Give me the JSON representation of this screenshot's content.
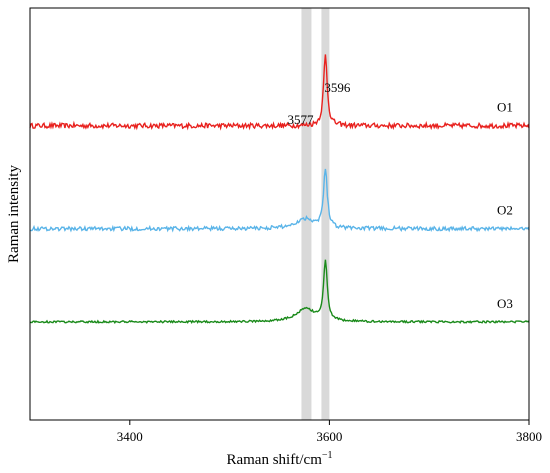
{
  "chart_data": {
    "type": "line",
    "title": "",
    "xlabel": "Raman shift/cm",
    "xlabel_superscript": "−1",
    "ylabel": "Raman intensity",
    "xlim": [
      3300,
      3800
    ],
    "xticks": [
      3400,
      3600,
      3800
    ],
    "yticks_shown": false,
    "grid": false,
    "legend": "none",
    "shaded_bands": [
      {
        "center": 3577,
        "width": 10,
        "color": "#d9d9d9"
      },
      {
        "center": 3596,
        "width": 8,
        "color": "#d9d9d9"
      }
    ],
    "annotations": [
      {
        "text": "3577",
        "x": 3577
      },
      {
        "text": "3596",
        "x": 3596
      }
    ],
    "series": [
      {
        "name": "O1",
        "color": "#e8211e",
        "baseline": 3.0,
        "peaks": [
          {
            "x": 3596,
            "height": 0.72,
            "width": 2.6
          }
        ],
        "noise": 0.025
      },
      {
        "name": "O2",
        "color": "#5ab4e8",
        "baseline": 1.95,
        "peaks": [
          {
            "x": 3576,
            "height": 0.1,
            "width": 9
          },
          {
            "x": 3596,
            "height": 0.6,
            "width": 2.6
          }
        ],
        "noise": 0.02
      },
      {
        "name": "O3",
        "color": "#1a8a1a",
        "baseline": 1.0,
        "peaks": [
          {
            "x": 3576,
            "height": 0.13,
            "width": 9
          },
          {
            "x": 3596,
            "height": 0.6,
            "width": 2.6
          }
        ],
        "noise": 0.01
      }
    ]
  }
}
